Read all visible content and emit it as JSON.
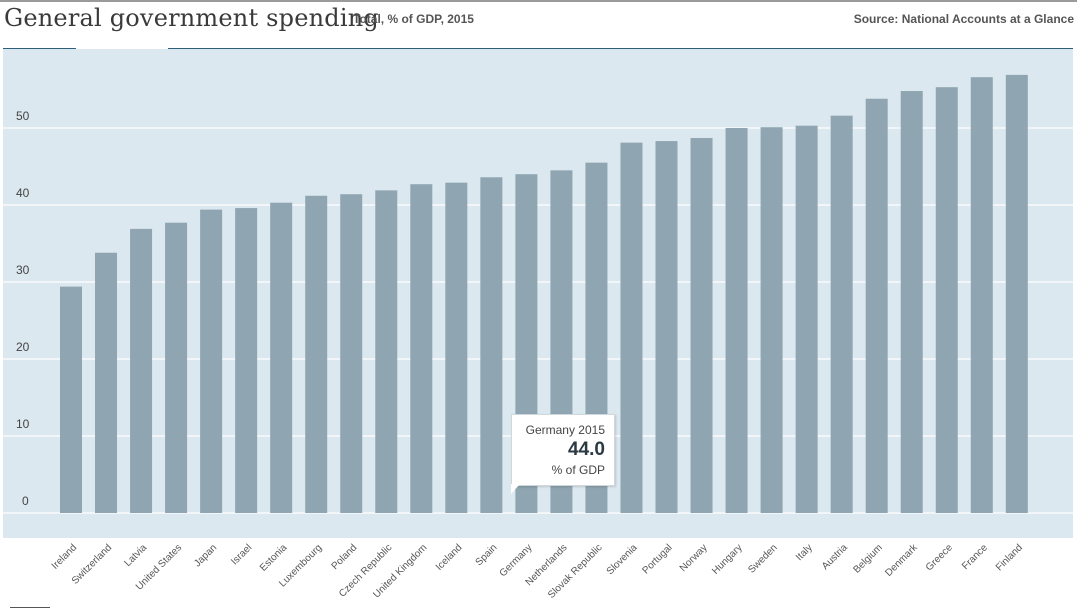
{
  "header": {
    "title": "General government spending",
    "subtitle": "Total, % of GDP, 2015",
    "source": "Source: National Accounts at a Glance"
  },
  "tooltip": {
    "title": "Germany 2015",
    "value": "44.0",
    "unit": "% of GDP"
  },
  "colors": {
    "bar": "#8fa5b1",
    "background": "#dce8ef",
    "gridline": "#ffffff",
    "header_rule": "#2d5f78"
  },
  "chart_data": {
    "type": "bar",
    "title": "General government spending",
    "subtitle": "Total, % of GDP, 2015",
    "xlabel": "",
    "ylabel": "",
    "ylim": [
      0,
      60
    ],
    "yticks": [
      0,
      10,
      20,
      30,
      40,
      50
    ],
    "grid": true,
    "categories": [
      "Ireland",
      "Switzerland",
      "Latvia",
      "United States",
      "Japan",
      "Israel",
      "Estonia",
      "Luxembourg",
      "Poland",
      "Czech Republic",
      "United Kingdom",
      "Iceland",
      "Spain",
      "Germany",
      "Netherlands",
      "Slovak Republic",
      "Slovenia",
      "Portugal",
      "Norway",
      "Hungary",
      "Sweden",
      "Italy",
      "Austria",
      "Belgium",
      "Denmark",
      "Greece",
      "France",
      "Finland"
    ],
    "values": [
      29.4,
      33.8,
      36.9,
      37.7,
      39.4,
      39.6,
      40.3,
      41.2,
      41.4,
      41.9,
      42.7,
      42.9,
      43.6,
      44.0,
      44.5,
      45.5,
      48.1,
      48.3,
      48.7,
      50.0,
      50.1,
      50.3,
      51.6,
      53.8,
      54.8,
      55.3,
      56.6,
      56.9
    ]
  }
}
